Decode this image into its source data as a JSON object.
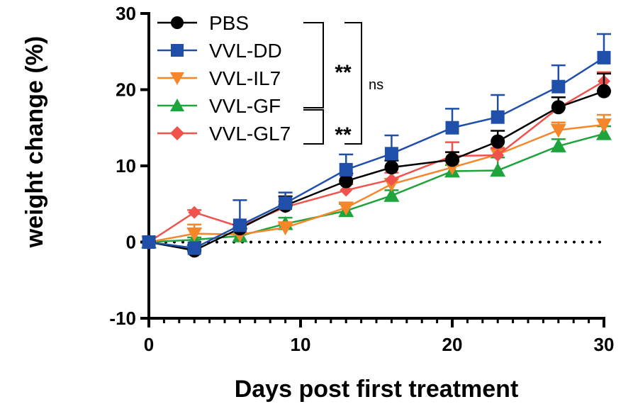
{
  "chart_data": {
    "type": "line",
    "xlabel": "Days post first treatment",
    "ylabel": "weight change (%)",
    "xlim": [
      0,
      30
    ],
    "ylim": [
      -10,
      30
    ],
    "xticks": [
      "0",
      "10",
      "20",
      "30"
    ],
    "yticks": [
      "-10",
      "0",
      "10",
      "20",
      "30"
    ],
    "grid": false,
    "legend_position": "top-left",
    "reference_line": 0,
    "x": [
      0,
      3,
      6,
      9,
      13,
      16,
      20,
      23,
      27,
      30
    ],
    "series": [
      {
        "name": "PBS",
        "color": "#000000",
        "marker": "circle",
        "values": [
          0,
          -1.1,
          1.8,
          4.8,
          8.0,
          9.8,
          10.8,
          13.2,
          17.7,
          19.8
        ],
        "error": [
          0,
          0.4,
          0.5,
          1.2,
          1.0,
          0.9,
          1.0,
          1.4,
          1.3,
          2.3
        ]
      },
      {
        "name": "VVL-DD",
        "color": "#1f4fa8",
        "marker": "square",
        "values": [
          0,
          -0.8,
          2.2,
          5.1,
          9.5,
          11.6,
          15.0,
          16.4,
          20.4,
          24.2
        ],
        "error": [
          0,
          0.4,
          3.3,
          1.4,
          2.0,
          2.4,
          2.5,
          2.9,
          2.8,
          3.1
        ]
      },
      {
        "name": "VVL-IL7",
        "color": "#f5872a",
        "marker": "triangle-down",
        "values": [
          0,
          1.1,
          1.0,
          1.9,
          4.5,
          7.6,
          9.8,
          11.5,
          14.7,
          15.4
        ],
        "error": [
          0,
          1.2,
          0.3,
          0.5,
          0.6,
          0.7,
          0.8,
          0.9,
          1.0,
          1.3
        ]
      },
      {
        "name": "VVL-GF",
        "color": "#1fa33c",
        "marker": "triangle-up",
        "values": [
          0,
          0.3,
          0.8,
          2.4,
          4.1,
          6.1,
          9.3,
          9.4,
          12.6,
          14.2
        ],
        "error": [
          0,
          0.3,
          0.3,
          0.8,
          0.9,
          0.7,
          0.8,
          1.7,
          0.9,
          1.0
        ]
      },
      {
        "name": "VVL-GL7",
        "color": "#f0524e",
        "marker": "diamond",
        "values": [
          0,
          3.9,
          2.0,
          4.6,
          6.8,
          8.2,
          11.3,
          11.4,
          17.6,
          21.1
        ],
        "error": [
          0,
          0.3,
          0.3,
          0.7,
          0.8,
          0.9,
          1.8,
          0.9,
          1.4,
          1.2
        ]
      }
    ],
    "annotations": {
      "sig1": "**",
      "sig2": "**",
      "ns": "ns"
    }
  }
}
